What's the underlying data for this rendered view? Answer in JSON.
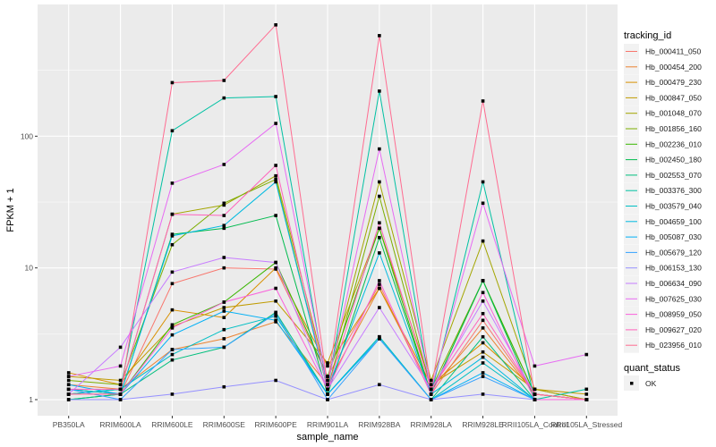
{
  "chart_data": {
    "type": "line",
    "xlabel": "sample_name",
    "ylabel": "FPKM + 1",
    "y_scale": "log10",
    "ylim": [
      0.755,
      1000
    ],
    "yticks": [
      1,
      10,
      100
    ],
    "ytick_labels": [
      "1",
      "10",
      "100"
    ],
    "grid": true,
    "legend_placement": "right",
    "categories": [
      "PB350LA",
      "RRIM600LA",
      "RRIM600LE",
      "RRIM600SE",
      "RRIM600PE",
      "RRIM901LA",
      "RRIM928BA",
      "RRIM928LA",
      "RRIM928LE",
      "RRII105LA_Control",
      "RRII105LA_Stressed"
    ],
    "legend_title": "tracking_id",
    "shape_legend_title": "quant_status",
    "shape_legend_items": [
      "OK"
    ],
    "series": [
      {
        "name": "Hb_000411_050",
        "color": "#F8766D",
        "values": [
          1.2,
          1.1,
          7.6,
          10,
          9.8,
          1.5,
          7.5,
          1.1,
          4,
          1.1,
          1.0
        ]
      },
      {
        "name": "Hb_000454_200",
        "color": "#EA8331",
        "values": [
          1.3,
          1.2,
          2.4,
          2.9,
          3.9,
          1.3,
          7,
          1.2,
          3.5,
          1.1,
          1.0
        ]
      },
      {
        "name": "Hb_000479_230",
        "color": "#D89000",
        "values": [
          1.6,
          1.3,
          4.8,
          4.2,
          10,
          1.8,
          7,
          1.3,
          2.7,
          1.2,
          1.0
        ]
      },
      {
        "name": "Hb_000847_050",
        "color": "#C09B00",
        "values": [
          1.5,
          1.4,
          3.6,
          5,
          5.6,
          1.9,
          20,
          1.3,
          2.3,
          1.2,
          1.1
        ]
      },
      {
        "name": "Hb_001048_070",
        "color": "#A3A500",
        "values": [
          1.1,
          1.2,
          25.6,
          30,
          50,
          1.4,
          45,
          1.4,
          16,
          1.2,
          1.0
        ]
      },
      {
        "name": "Hb_001856_160",
        "color": "#7CAE00",
        "values": [
          1.4,
          1.3,
          15,
          31,
          47,
          1.2,
          35,
          1.2,
          8,
          1.1,
          1.0
        ]
      },
      {
        "name": "Hb_002236_010",
        "color": "#39B600",
        "values": [
          1.2,
          1.1,
          3.7,
          5.5,
          11,
          1.5,
          20,
          1.1,
          8,
          1.1,
          1.0
        ]
      },
      {
        "name": "Hb_002450_180",
        "color": "#00BB4E",
        "values": [
          1.0,
          1.1,
          18,
          20,
          25,
          1.1,
          17,
          1.1,
          8,
          1.0,
          1.0
        ]
      },
      {
        "name": "Hb_002553_070",
        "color": "#00BF7D",
        "values": [
          1.0,
          1.1,
          2.0,
          2.5,
          4.6,
          1.1,
          3,
          1.0,
          3,
          1.0,
          1.0
        ]
      },
      {
        "name": "Hb_003376_300",
        "color": "#00C1A3",
        "values": [
          1.1,
          1.2,
          110,
          195,
          200,
          1.2,
          220,
          1.1,
          45,
          1.0,
          1.2
        ]
      },
      {
        "name": "Hb_003579_040",
        "color": "#00BFC4",
        "values": [
          1.1,
          1.2,
          2.2,
          3.4,
          4.3,
          1.1,
          3.0,
          1.0,
          1.9,
          1.0,
          1.0
        ]
      },
      {
        "name": "Hb_004659_100",
        "color": "#00BAE0",
        "values": [
          1.2,
          1.1,
          17.5,
          21,
          45,
          1.2,
          13,
          1.1,
          2.1,
          1.0,
          1.0
        ]
      },
      {
        "name": "Hb_005087_030",
        "color": "#00B0F6",
        "values": [
          1.3,
          1.1,
          3.1,
          4.7,
          4.0,
          1.1,
          2.9,
          1.0,
          1.6,
          1.0,
          1.0
        ]
      },
      {
        "name": "Hb_005679_120",
        "color": "#35A2FF",
        "values": [
          1.2,
          1.0,
          2.4,
          2.5,
          4.5,
          1.0,
          2.9,
          1.0,
          1.5,
          1.0,
          1.0
        ]
      },
      {
        "name": "Hb_006153_130",
        "color": "#9590FF",
        "values": [
          1.0,
          1.0,
          1.1,
          1.25,
          1.4,
          1.0,
          1.3,
          1.0,
          1.1,
          1.0,
          1.0
        ]
      },
      {
        "name": "Hb_006634_090",
        "color": "#C77CFF",
        "values": [
          1.1,
          2.5,
          9.3,
          12,
          11,
          1.2,
          5,
          1.2,
          5.6,
          1.1,
          1.0
        ]
      },
      {
        "name": "Hb_007625_030",
        "color": "#E76BF3",
        "values": [
          1.5,
          1.8,
          44,
          61,
          125,
          1.3,
          80,
          1.2,
          31,
          1.8,
          2.2
        ]
      },
      {
        "name": "Hb_008959_050",
        "color": "#FA62DB",
        "values": [
          1.1,
          1.1,
          3.5,
          5.5,
          7,
          1.2,
          8,
          1.1,
          6.5,
          1.0,
          1.0
        ]
      },
      {
        "name": "Hb_009627_020",
        "color": "#FF62BC",
        "values": [
          1.2,
          1.2,
          25.5,
          25,
          60,
          1.2,
          22,
          1.2,
          4.5,
          1.1,
          1.0
        ]
      },
      {
        "name": "Hb_023956_010",
        "color": "#FF6C91",
        "values": [
          1.1,
          1.1,
          255,
          265,
          700,
          1.3,
          580,
          1.2,
          185,
          1.1,
          1.0
        ]
      }
    ]
  }
}
